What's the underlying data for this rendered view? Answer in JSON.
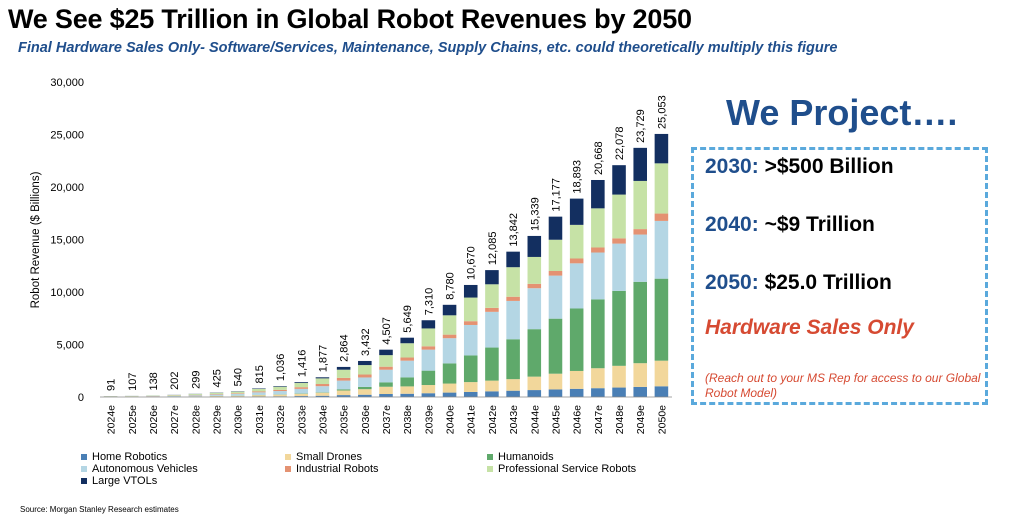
{
  "title": "We See $25 Trillion in Global Robot Revenues by 2050",
  "subtitle": "Final Hardware Sales Only- Software/Services, Maintenance, Supply Chains, etc. could theoretically multiply this figure",
  "source": "Source: Morgan Stanley Research estimates",
  "projection": {
    "title": "We Project….",
    "rows": [
      {
        "year": "2030:",
        "value": ">$500 Billion"
      },
      {
        "year": "2040:",
        "value": "~$9 Trillion"
      },
      {
        "year": "2050:",
        "value": "$25.0 Trillion"
      }
    ],
    "hardware_only": "Hardware Sales Only",
    "note": "(Reach out to your MS Rep for access to our Global Robot Model)",
    "colors": {
      "title": "#1f4e8c",
      "accent": "#d64a32",
      "border": "#5aa9dc"
    }
  },
  "chart_data": {
    "type": "bar",
    "stacked": true,
    "ylabel": "Robot Revenue ($ Billions)",
    "ylim": [
      0,
      30000
    ],
    "yticks": [
      0,
      5000,
      10000,
      15000,
      20000,
      25000,
      30000
    ],
    "ytick_labels": [
      "0",
      "5,000",
      "10,000",
      "15,000",
      "20,000",
      "25,000",
      "30,000"
    ],
    "grid": false,
    "legend_position": "bottom",
    "categories": [
      "2024e",
      "2025e",
      "2026e",
      "2027e",
      "2028e",
      "2029e",
      "2030e",
      "2031e",
      "2032e",
      "2033e",
      "2034e",
      "2035e",
      "2036e",
      "2037e",
      "2038e",
      "2039e",
      "2040e",
      "2041e",
      "2042e",
      "2043e",
      "2044e",
      "2045e",
      "2046e",
      "2047e",
      "2048e",
      "2049e",
      "2050e"
    ],
    "totals": [
      91,
      107,
      138,
      202,
      299,
      425,
      540,
      815,
      1036,
      1416,
      1877,
      2864,
      3432,
      4507,
      5649,
      7310,
      8780,
      10670,
      12085,
      13842,
      15339,
      17177,
      18893,
      20668,
      22078,
      23729,
      25053
    ],
    "total_labels": [
      "91",
      "107",
      "138",
      "202",
      "299",
      "425",
      "540",
      "815",
      "1,036",
      "1,416",
      "1,877",
      "2,864",
      "3,432",
      "4,507",
      "5,649",
      "7,310",
      "8,780",
      "10,670",
      "12,085",
      "13,842",
      "15,339",
      "17,177",
      "18,893",
      "20,668",
      "22,078",
      "23,729",
      "25,053"
    ],
    "series": [
      {
        "name": "Home Robotics",
        "color": "#4a7fb5",
        "values": [
          6,
          7,
          9,
          13,
          19,
          27,
          34,
          52,
          66,
          90,
          119,
          181,
          217,
          285,
          310,
          360,
          420,
          480,
          540,
          600,
          660,
          720,
          780,
          840,
          900,
          960,
          1020
        ]
      },
      {
        "name": "Small Drones",
        "color": "#f2d79b",
        "values": [
          14,
          16,
          21,
          31,
          46,
          65,
          83,
          125,
          159,
          217,
          288,
          440,
          527,
          692,
          700,
          780,
          860,
          940,
          1020,
          1100,
          1280,
          1500,
          1700,
          1900,
          2070,
          2260,
          2440
        ]
      },
      {
        "name": "Humanoids",
        "color": "#5fa96b",
        "values": [
          2,
          2,
          3,
          4,
          6,
          9,
          12,
          18,
          23,
          32,
          42,
          110,
          219,
          420,
          860,
          1370,
          1920,
          2540,
          3150,
          3800,
          4520,
          5240,
          5950,
          6560,
          7140,
          7750,
          7810
        ]
      },
      {
        "name": "Autonomous Vehicles",
        "color": "#b4d6e4",
        "values": [
          28,
          33,
          43,
          63,
          93,
          132,
          167,
          252,
          321,
          438,
          580,
          830,
          898,
          1200,
          1590,
          2000,
          2400,
          2900,
          3400,
          3650,
          3900,
          4100,
          4300,
          4460,
          4500,
          4500,
          5500
        ]
      },
      {
        "name": "Industrial Robots",
        "color": "#e49272",
        "values": [
          10,
          12,
          15,
          22,
          33,
          47,
          60,
          90,
          115,
          157,
          208,
          260,
          280,
          290,
          300,
          320,
          340,
          360,
          380,
          400,
          420,
          440,
          460,
          480,
          500,
          520,
          700
        ]
      },
      {
        "name": "Professional Service Robots",
        "color": "#c6e2a6",
        "values": [
          26,
          31,
          40,
          58,
          86,
          122,
          155,
          234,
          297,
          406,
          538,
          780,
          900,
          1100,
          1360,
          1700,
          1840,
          2250,
          2245,
          2812,
          2559,
          2977,
          3203,
          3728,
          4168,
          4589,
          4783
        ]
      },
      {
        "name": "Large VTOLs",
        "color": "#132f60",
        "values": [
          5,
          6,
          7,
          11,
          16,
          23,
          29,
          44,
          55,
          76,
          102,
          263,
          391,
          520,
          529,
          780,
          1000,
          1200,
          1350,
          1480,
          2000,
          2200,
          2500,
          2700,
          2800,
          3150,
          2800
        ]
      }
    ]
  }
}
